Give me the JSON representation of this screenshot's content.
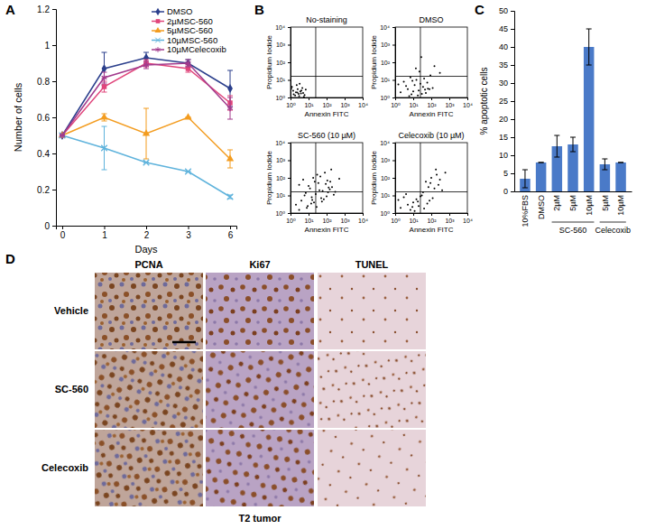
{
  "panel_labels": [
    "A",
    "B",
    "C",
    "D"
  ],
  "chart_data": [
    {
      "type": "line",
      "x_label": "Days",
      "y_label": "Number of cells",
      "categories": [
        "0",
        "1",
        "2",
        "3",
        "6"
      ],
      "ylim": [
        0,
        1.2
      ],
      "yticks": [
        0,
        0.2,
        0.4,
        0.6,
        0.8,
        1,
        1.2
      ],
      "legend": "upper right",
      "series": [
        {
          "name": "DMSO",
          "color": "#2b3f8c",
          "marker": "diamond",
          "values": [
            0.5,
            0.87,
            0.93,
            0.9,
            0.76
          ],
          "errors": [
            0,
            0.09,
            0.03,
            0.02,
            0.1
          ]
        },
        {
          "name": "2µMSC-560",
          "color": "#e0457b",
          "marker": "square",
          "values": [
            0.5,
            0.77,
            0.9,
            0.87,
            0.68
          ],
          "errors": [
            0,
            0.03,
            0.02,
            0.02,
            0.04
          ]
        },
        {
          "name": "5µMSC-560",
          "color": "#f39c1f",
          "marker": "triangle",
          "values": [
            0.5,
            0.6,
            0.51,
            0.6,
            0.37
          ],
          "errors": [
            0,
            0.02,
            0.14,
            0,
            0.05
          ]
        },
        {
          "name": "10µMSC-560",
          "color": "#5fb3dc",
          "marker": "x",
          "values": [
            0.5,
            0.43,
            0.35,
            0.3,
            0.16
          ],
          "errors": [
            0,
            0.12,
            0,
            0,
            0.01
          ]
        },
        {
          "name": "10µMCelecoxib",
          "color": "#a23a8c",
          "marker": "asterisk",
          "values": [
            0.5,
            0.82,
            0.89,
            0.9,
            0.65
          ],
          "errors": [
            0,
            0.03,
            0.02,
            0.02,
            0.06
          ]
        }
      ]
    },
    {
      "type": "scatter",
      "title": "No-staining",
      "x_label": "Annexin FITC",
      "y_label": "Propidium Iodide",
      "log": true,
      "xlim": [
        1,
        10000
      ],
      "ylim": [
        1,
        10000
      ],
      "xticks": [
        {
          "value": 1,
          "label": "10⁰"
        },
        {
          "value": 10,
          "label": "10¹"
        },
        {
          "value": 100,
          "label": "10²"
        },
        {
          "value": 1000,
          "label": "10³"
        },
        {
          "value": 10000,
          "label": "10⁴"
        }
      ],
      "yticks": [
        {
          "value": 1,
          "label": "10⁰"
        },
        {
          "value": 10,
          "label": "10¹"
        },
        {
          "value": 100,
          "label": "10²"
        },
        {
          "value": 1000,
          "label": "10³"
        },
        {
          "value": 10000,
          "label": "10⁴"
        }
      ],
      "gate_x": 25,
      "gate_y": 16,
      "color": "#000000",
      "marker": "dot",
      "x": [
        1.5,
        2,
        3,
        2.5,
        4,
        5,
        1.2,
        3.5,
        6,
        2.2,
        1.8,
        4.5,
        2.8,
        7,
        1.4,
        3.2,
        5.5,
        2.4,
        1.1,
        3.8
      ],
      "values": [
        1.5,
        2,
        1.2,
        3,
        2.5,
        1.8,
        4,
        2.2,
        1.4,
        5,
        1.3,
        3.5,
        1.6,
        2.8,
        2.4,
        6,
        1.1,
        1.9,
        3.2,
        1.7
      ]
    },
    {
      "type": "scatter",
      "title": "DMSO",
      "x_label": "Annexin FITC",
      "y_label": "Propidium Iodide",
      "log": true,
      "xlim": [
        1,
        10000
      ],
      "ylim": [
        1,
        10000
      ],
      "xticks": [
        {
          "value": 1,
          "label": "10⁰"
        },
        {
          "value": 10,
          "label": "10¹"
        },
        {
          "value": 100,
          "label": "10²"
        },
        {
          "value": 1000,
          "label": "10³"
        },
        {
          "value": 10000,
          "label": "10⁴"
        }
      ],
      "yticks": [
        {
          "value": 1,
          "label": "10⁰"
        },
        {
          "value": 10,
          "label": "10¹"
        },
        {
          "value": 100,
          "label": "10²"
        },
        {
          "value": 1000,
          "label": "10³"
        },
        {
          "value": 10000,
          "label": "10⁴"
        }
      ],
      "gate_x": 25,
      "gate_y": 16,
      "color": "#000000",
      "marker": "dot",
      "x": [
        2,
        5,
        8,
        12,
        20,
        35,
        50,
        80,
        3,
        6,
        15,
        25,
        40,
        4,
        10,
        30,
        60,
        120,
        1.5,
        9,
        18,
        45,
        7,
        22,
        150,
        300,
        28,
        14,
        65,
        90
      ],
      "values": [
        2,
        3,
        1.5,
        5,
        2.5,
        4,
        1.8,
        3,
        8,
        1.2,
        10,
        6,
        12,
        4.5,
        2.2,
        1.6,
        7,
        3.5,
        5.5,
        9,
        1.3,
        2.8,
        14,
        30,
        60,
        25,
        200,
        45,
        3.2,
        18
      ]
    },
    {
      "type": "scatter",
      "title": "SC-560 (10 µM)",
      "x_label": "Annexin FITC",
      "y_label": "Propidium Iodide",
      "log": true,
      "xlim": [
        1,
        10000
      ],
      "ylim": [
        1,
        10000
      ],
      "xticks": [
        {
          "value": 1,
          "label": "10⁰"
        },
        {
          "value": 10,
          "label": "10¹"
        },
        {
          "value": 100,
          "label": "10²"
        },
        {
          "value": 1000,
          "label": "10³"
        },
        {
          "value": 10000,
          "label": "10⁴"
        }
      ],
      "yticks": [
        {
          "value": 1,
          "label": "10⁰"
        },
        {
          "value": 10,
          "label": "10¹"
        },
        {
          "value": 100,
          "label": "10²"
        },
        {
          "value": 1000,
          "label": "10³"
        },
        {
          "value": 10000,
          "label": "10⁴"
        }
      ],
      "gate_x": 25,
      "gate_y": 16,
      "color": "#000000",
      "marker": "dot",
      "x": [
        2,
        4,
        8,
        15,
        25,
        40,
        70,
        120,
        200,
        3,
        6,
        12,
        20,
        35,
        60,
        100,
        160,
        5,
        10,
        18,
        30,
        50,
        90,
        150,
        250,
        7,
        14,
        22,
        45,
        80,
        130,
        3,
        9,
        16,
        28,
        55,
        110,
        180,
        300,
        500
      ],
      "values": [
        3,
        5,
        2,
        8,
        12,
        20,
        6,
        15,
        30,
        40,
        10,
        25,
        4,
        50,
        18,
        9,
        60,
        80,
        35,
        100,
        150,
        7,
        45,
        22,
        11,
        14,
        3.5,
        60,
        120,
        200,
        28,
        1.5,
        2.5,
        5.5,
        2.2,
        4.5,
        70,
        300,
        16,
        90
      ]
    },
    {
      "type": "scatter",
      "title": "Celecoxib (10 µM)",
      "x_label": "Annexin FITC",
      "y_label": "Propidium Iodide",
      "log": true,
      "xlim": [
        1,
        10000
      ],
      "ylim": [
        1,
        10000
      ],
      "xticks": [
        {
          "value": 1,
          "label": "10⁰"
        },
        {
          "value": 10,
          "label": "10¹"
        },
        {
          "value": 100,
          "label": "10²"
        },
        {
          "value": 1000,
          "label": "10³"
        },
        {
          "value": 10000,
          "label": "10⁴"
        }
      ],
      "yticks": [
        {
          "value": 1,
          "label": "10⁰"
        },
        {
          "value": 10,
          "label": "10¹"
        },
        {
          "value": 100,
          "label": "10²"
        },
        {
          "value": 1000,
          "label": "10³"
        },
        {
          "value": 10000,
          "label": "10⁴"
        }
      ],
      "gate_x": 25,
      "gate_y": 16,
      "color": "#000000",
      "marker": "dot",
      "x": [
        2,
        5,
        10,
        20,
        40,
        80,
        3,
        7,
        15,
        30,
        60,
        120,
        4,
        9,
        18,
        35,
        70,
        150,
        250,
        1.5,
        12,
        25,
        50,
        100,
        200,
        400,
        600,
        300,
        180,
        90
      ],
      "values": [
        2,
        3,
        4,
        2.5,
        1.8,
        5,
        8,
        1.5,
        6,
        10,
        3.5,
        7,
        12,
        2.2,
        4.5,
        15,
        30,
        25,
        40,
        5.5,
        1.3,
        9,
        60,
        100,
        150,
        20,
        200,
        80,
        300,
        50
      ]
    },
    {
      "type": "bar",
      "y_label": "% apoptotic cells",
      "categories": [
        "10%FBS",
        "DMSO",
        "2µM",
        "5µM",
        "10µM",
        "5µM",
        "10µM"
      ],
      "groups": [
        {
          "label": "SC-560",
          "members": [
            2,
            3,
            4
          ]
        },
        {
          "label": "Celecoxib",
          "members": [
            5,
            6
          ]
        }
      ],
      "values": [
        3.5,
        8,
        12.5,
        13,
        40,
        7.5,
        8
      ],
      "errors": [
        2.5,
        0,
        3,
        2,
        5,
        1.5,
        0
      ],
      "ylim": [
        0,
        50
      ],
      "yticks": [
        0,
        5,
        10,
        15,
        20,
        25,
        30,
        35,
        40,
        45,
        50
      ],
      "color": "#4a7ac8"
    }
  ],
  "panel_d": {
    "columns": [
      "PCNA",
      "Ki67",
      "TUNEL"
    ],
    "rows": [
      "Vehicle",
      "SC-560",
      "Celecoxib"
    ],
    "caption": "T2 tumor"
  }
}
